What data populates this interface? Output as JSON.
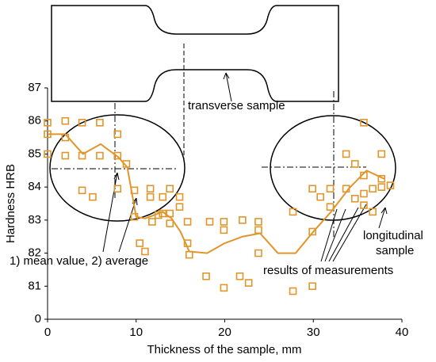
{
  "chart_data": {
    "type": "scatter",
    "xlabel": "Thickness of the sample, mm",
    "ylabel": "Hardness HRB",
    "xlim": [
      0,
      40
    ],
    "xticks": [
      0,
      10,
      20,
      30,
      40
    ],
    "ylim": [
      80,
      87
    ],
    "yticks": [
      {
        "value": 80,
        "label": "0"
      },
      81,
      82,
      83,
      84,
      85,
      86,
      87
    ],
    "series": [
      {
        "color": "#e0962a",
        "marker": "square",
        "x": [
          0,
          0,
          0,
          2,
          2,
          2,
          3.9,
          3.9,
          3.9,
          5.1,
          5.9,
          5.9,
          7.9,
          7.9,
          7.9,
          8.9,
          9.8,
          9.8,
          10.4,
          11,
          11.6,
          11.6,
          11.8,
          12.5,
          13,
          13,
          13.8,
          13.8,
          13.8,
          14.9,
          14.9,
          15.8,
          15.8,
          16,
          18.3,
          17.9,
          19.9,
          19.9,
          19.9,
          22,
          21.7,
          22.7,
          23.8,
          23.8,
          23.8,
          27.7,
          27.7,
          29.9,
          29.9,
          29.9,
          30.8,
          31.9,
          31.9,
          33.7,
          33.7,
          34.7,
          34.7,
          35.7,
          35.7,
          35.7,
          35.7,
          36.7,
          36.7,
          37.7,
          37.7,
          37.7,
          38.7
        ],
        "values": [
          85.95,
          85,
          85.6,
          86,
          85.5,
          84.95,
          85.95,
          84.95,
          83.9,
          83.7,
          85.95,
          84.95,
          85.6,
          84.95,
          83.95,
          84.7,
          83.9,
          83.1,
          82.3,
          82.05,
          83.95,
          83.7,
          82.95,
          83.15,
          83.7,
          83.2,
          83.95,
          83.2,
          82.9,
          83.7,
          83.4,
          82.95,
          82.3,
          81.95,
          82.95,
          81.3,
          82.95,
          82.7,
          80.95,
          83,
          81.3,
          81.1,
          82.95,
          82,
          82.7,
          83.25,
          80.85,
          81,
          82.65,
          83.95,
          83.7,
          83.4,
          83.95,
          85,
          83.95,
          84.7,
          83.65,
          85.95,
          84.35,
          83.8,
          83.45,
          83.95,
          83.25,
          85,
          84.25,
          84,
          84.05
        ]
      },
      {
        "color": "#e0962a",
        "marker": "none",
        "x": [
          0,
          2,
          4,
          6,
          8,
          9,
          10,
          11,
          13,
          14,
          15,
          16,
          18,
          20,
          22,
          24,
          26,
          28,
          30,
          32,
          34,
          36,
          38
        ],
        "values": [
          85.6,
          85.6,
          85.0,
          85.3,
          84.9,
          84.6,
          83.1,
          83.05,
          83.25,
          83.05,
          82.65,
          82.05,
          82.0,
          82.3,
          82.5,
          82.6,
          82.0,
          82.0,
          82.65,
          83.25,
          83.95,
          84.5,
          84.25
        ]
      }
    ],
    "annotations": {
      "transverse": "transverse sample",
      "mean": "1) mean value, 2) average",
      "results": "results of measurements",
      "longitudinal": [
        "longitudinal",
        "sample"
      ]
    }
  }
}
